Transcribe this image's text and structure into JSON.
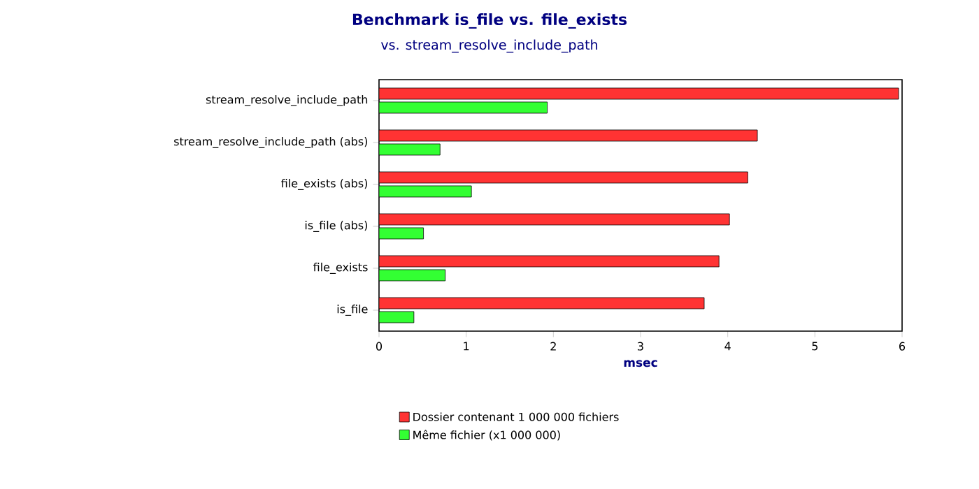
{
  "chart_data": {
    "type": "bar",
    "orientation": "horizontal",
    "title": "Benchmark is_file vs. file_exists",
    "subtitle": "vs. stream_resolve_include_path",
    "xlabel": "msec",
    "categories": [
      "stream_resolve_include_path",
      "stream_resolve_include_path (abs)",
      "file_exists (abs)",
      "is_file (abs)",
      "file_exists",
      "is_file"
    ],
    "series": [
      {
        "name": "Dossier contenant 1 000 000 fichiers",
        "color": "#ff3333",
        "values": [
          5.96,
          4.34,
          4.23,
          4.02,
          3.9,
          3.73
        ]
      },
      {
        "name": "Même fichier (x1 000 000)",
        "color": "#33ff33",
        "values": [
          1.93,
          0.7,
          1.06,
          0.51,
          0.76,
          0.4
        ]
      }
    ],
    "xlim": [
      0,
      6
    ],
    "xticks": [
      0,
      1,
      2,
      3,
      4,
      5,
      6
    ],
    "grid": false,
    "legend": "bottom"
  }
}
